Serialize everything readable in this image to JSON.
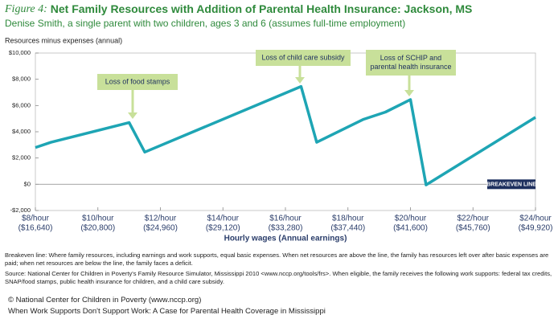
{
  "chart_data": {
    "type": "line",
    "title_prefix": "Figure 4:",
    "title": "Net Family Resources with Addition of Parental Health Insurance: Jackson, MS",
    "subtitle": "Denise Smith, a single parent with two children, ages 3 and 6 (assumes full-time employment)",
    "y_label": "Resources minus expenses (annual)",
    "x_label": "Hourly wages (Annual earnings)",
    "xlim": [
      8,
      24
    ],
    "ylim": [
      -2000,
      10000
    ],
    "xticks": [
      {
        "value": 8,
        "label": "$8/hour"
      },
      {
        "value": 10,
        "label": "$10/hour"
      },
      {
        "value": 12,
        "label": "$12/hour"
      },
      {
        "value": 14,
        "label": "$14/hour"
      },
      {
        "value": 16,
        "label": "$16/hour"
      },
      {
        "value": 18,
        "label": "$18/hour"
      },
      {
        "value": 20,
        "label": "$20/hour"
      },
      {
        "value": 22,
        "label": "$22/hour"
      },
      {
        "value": 24,
        "label": "$24/hour"
      }
    ],
    "xtick_earnings": [
      "($16,640)",
      "($20,800)",
      "($24,960)",
      "($29,120)",
      "($33,280)",
      "($37,440)",
      "($41,600)",
      "($45,760)",
      "($49,920)"
    ],
    "yticks": [
      {
        "value": -2000,
        "label": "-$2,000"
      },
      {
        "value": 0,
        "label": "$0"
      },
      {
        "value": 2000,
        "label": "$2,000"
      },
      {
        "value": 4000,
        "label": "$4,000"
      },
      {
        "value": 6000,
        "label": "$6,000"
      },
      {
        "value": 8000,
        "label": "$8,000"
      },
      {
        "value": 10000,
        "label": "$10,000"
      }
    ],
    "grid": false,
    "breakeven_label": "BREAKEVEN LINE",
    "x": [
      8,
      8.5,
      11,
      11.5,
      16.5,
      17,
      18.5,
      19.2,
      20,
      20.5,
      24
    ],
    "series": [
      {
        "name": "Net family resources",
        "color": "#1ea5b4",
        "values": [
          2800,
          3200,
          4700,
          2450,
          7450,
          3200,
          4950,
          5500,
          6450,
          -50,
          5100
        ]
      }
    ],
    "annotations": [
      {
        "lines": [
          "Loss of food stamps"
        ]
      },
      {
        "lines": [
          "Loss of child care subsidy"
        ]
      },
      {
        "lines": [
          "Loss of SCHIP and",
          "parental health insurance"
        ]
      }
    ],
    "notes": [
      "Breakeven line: Where family resources, including earnings and work supports, equal basic expenses. When net resources are above the line, the family has resources left over after basic expenses are paid; when net resources are below the line, the family faces a deficit.",
      "Source: National Center for Children in Poverty's Family Resource Simulator, Mississippi 2010 <www.nccp.org/tools/frs>. When eligible, the family receives the following work supports: federal tax credits, SNAP/food stamps, public health insurance for children, and a child care subsidy."
    ],
    "footer": [
      "© National Center for Children in Poverty (www.nccp.org)",
      "When Work Supports Don't Support Work: A Case for Parental Health Coverage in Mississippi"
    ]
  }
}
